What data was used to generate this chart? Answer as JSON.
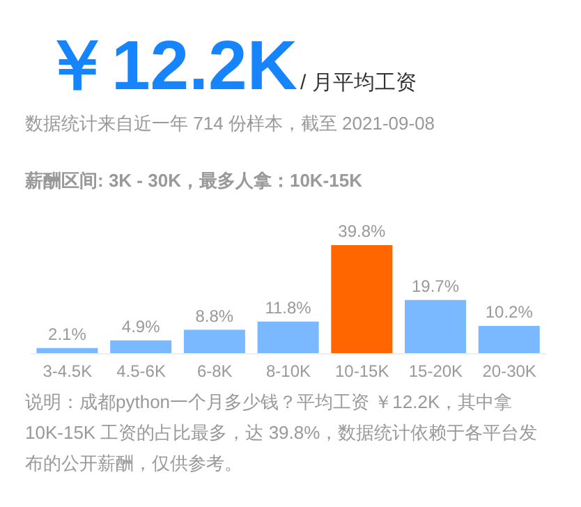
{
  "chart_data": {
    "type": "bar",
    "title": "￥12.2K",
    "subtitle": "/ 月平均工资",
    "annotations": [
      "数据统计来自近一年 714 份样本，截至 2021-09-08",
      "薪酬区间: 3K - 30K，最多人拿：10K-15K",
      "说明：成都python一个月多少钱？平均工资 ￥12.2K，其中拿10K-15K 工资的占比最多，达 39.8%，数据统计依赖于各平台发布的公开薪酬，仅供参考。"
    ],
    "categories": [
      "3-4.5K",
      "4.5-6K",
      "6-8K",
      "8-10K",
      "10-15K",
      "15-20K",
      "20-30K"
    ],
    "values": [
      2.1,
      4.9,
      8.8,
      11.8,
      39.8,
      19.7,
      10.2
    ],
    "value_labels": [
      "2.1%",
      "4.9%",
      "8.8%",
      "11.8%",
      "39.8%",
      "19.7%",
      "10.2%"
    ],
    "colors": [
      "#7ab8ff",
      "#7ab8ff",
      "#7ab8ff",
      "#7ab8ff",
      "#ff6600",
      "#7ab8ff",
      "#7ab8ff"
    ],
    "grid": false,
    "legend": false
  }
}
